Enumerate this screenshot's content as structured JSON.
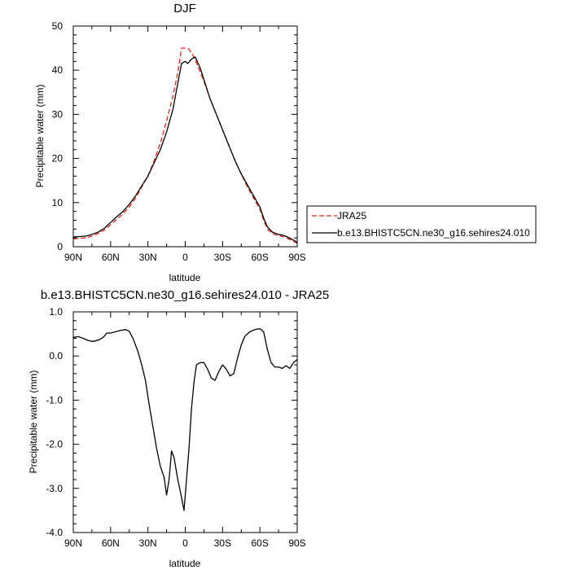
{
  "chart_data": [
    {
      "type": "line",
      "title": "DJF",
      "xlabel": "latitude",
      "ylabel": "Precipitable water (mm)",
      "xlim": [
        90,
        -90
      ],
      "ylim": [
        0,
        50
      ],
      "x_ticks": [
        90,
        60,
        30,
        0,
        -30,
        -60,
        -90
      ],
      "x_tick_labels": [
        "90N",
        "60N",
        "30N",
        "0",
        "30S",
        "60S",
        "90S"
      ],
      "y_ticks": [
        0,
        10,
        20,
        30,
        40,
        50
      ],
      "y_tick_labels": [
        "0",
        "10",
        "20",
        "30",
        "40",
        "50"
      ],
      "legend_position": "right of plot",
      "series": [
        {
          "name": "JRA25",
          "color": "#e8231b",
          "dash": "dashed",
          "points": [
            [
              90,
              1.8
            ],
            [
              85,
              1.9
            ],
            [
              80,
              2.0
            ],
            [
              75,
              2.4
            ],
            [
              70,
              3.0
            ],
            [
              65,
              3.8
            ],
            [
              60,
              5.0
            ],
            [
              55,
              6.2
            ],
            [
              50,
              7.5
            ],
            [
              45,
              9.0
            ],
            [
              40,
              11.0
            ],
            [
              35,
              13.5
            ],
            [
              30,
              16.0
            ],
            [
              25,
              19.5
            ],
            [
              20,
              23.5
            ],
            [
              15,
              28.5
            ],
            [
              10,
              34.0
            ],
            [
              6,
              39.5
            ],
            [
              4,
              43.0
            ],
            [
              3,
              45.0
            ],
            [
              0,
              45.0
            ],
            [
              -3,
              44.8
            ],
            [
              -6,
              43.5
            ],
            [
              -10,
              41.0
            ],
            [
              -15,
              37.5
            ],
            [
              -20,
              33.5
            ],
            [
              -25,
              30.0
            ],
            [
              -30,
              26.5
            ],
            [
              -35,
              23.0
            ],
            [
              -40,
              19.5
            ],
            [
              -45,
              16.5
            ],
            [
              -50,
              13.5
            ],
            [
              -55,
              11.0
            ],
            [
              -60,
              8.5
            ],
            [
              -63,
              6.0
            ],
            [
              -66,
              4.0
            ],
            [
              -70,
              3.0
            ],
            [
              -75,
              2.5
            ],
            [
              -80,
              2.2
            ],
            [
              -85,
              1.5
            ],
            [
              -90,
              0.8
            ]
          ]
        },
        {
          "name": "b.e13.BHISTC5CN.ne30_g16.sehires24.010",
          "color": "#000000",
          "dash": "solid",
          "points": [
            [
              90,
              2.2
            ],
            [
              85,
              2.3
            ],
            [
              80,
              2.4
            ],
            [
              75,
              2.8
            ],
            [
              70,
              3.3
            ],
            [
              65,
              4.2
            ],
            [
              60,
              5.5
            ],
            [
              55,
              6.8
            ],
            [
              50,
              8.0
            ],
            [
              45,
              9.6
            ],
            [
              40,
              11.5
            ],
            [
              35,
              13.8
            ],
            [
              30,
              16.0
            ],
            [
              25,
              19.0
            ],
            [
              20,
              22.0
            ],
            [
              15,
              26.0
            ],
            [
              10,
              31.0
            ],
            [
              6,
              37.0
            ],
            [
              3,
              41.5
            ],
            [
              0,
              42.0
            ],
            [
              -2,
              41.5
            ],
            [
              -5,
              42.5
            ],
            [
              -8,
              43.0
            ],
            [
              -12,
              40.5
            ],
            [
              -16,
              37.0
            ],
            [
              -20,
              33.5
            ],
            [
              -25,
              30.0
            ],
            [
              -30,
              26.5
            ],
            [
              -35,
              23.0
            ],
            [
              -40,
              19.5
            ],
            [
              -45,
              16.5
            ],
            [
              -50,
              14.0
            ],
            [
              -55,
              11.5
            ],
            [
              -60,
              9.0
            ],
            [
              -63,
              6.5
            ],
            [
              -66,
              4.5
            ],
            [
              -70,
              3.3
            ],
            [
              -75,
              2.8
            ],
            [
              -80,
              2.5
            ],
            [
              -85,
              1.8
            ],
            [
              -90,
              1.0
            ]
          ]
        }
      ]
    },
    {
      "type": "line",
      "title": "b.e13.BHISTC5CN.ne30_g16.sehires24.010 - JRA25",
      "xlabel": "latitude",
      "ylabel": "Precipitable water (mm)",
      "xlim": [
        90,
        -90
      ],
      "ylim": [
        -4,
        1
      ],
      "x_ticks": [
        90,
        60,
        30,
        0,
        -30,
        -60,
        -90
      ],
      "x_tick_labels": [
        "90N",
        "60N",
        "30N",
        "0",
        "30S",
        "60S",
        "90S"
      ],
      "y_ticks": [
        1,
        0,
        -1,
        -2,
        -3,
        -4
      ],
      "y_tick_labels": [
        "1.0",
        "0.0",
        "-1.0",
        "-2.0",
        "-3.0",
        "-4.0"
      ],
      "series": [
        {
          "color": "#000000",
          "dash": "solid",
          "points": [
            [
              90,
              0.42
            ],
            [
              86,
              0.44
            ],
            [
              82,
              0.4
            ],
            [
              78,
              0.35
            ],
            [
              74,
              0.33
            ],
            [
              70,
              0.36
            ],
            [
              66,
              0.42
            ],
            [
              63,
              0.52
            ],
            [
              60,
              0.52
            ],
            [
              56,
              0.55
            ],
            [
              52,
              0.58
            ],
            [
              48,
              0.6
            ],
            [
              45,
              0.56
            ],
            [
              42,
              0.4
            ],
            [
              38,
              0.1
            ],
            [
              35,
              -0.2
            ],
            [
              32,
              -0.55
            ],
            [
              29,
              -1.1
            ],
            [
              26,
              -1.6
            ],
            [
              23,
              -2.1
            ],
            [
              20,
              -2.5
            ],
            [
              17,
              -2.75
            ],
            [
              15,
              -3.15
            ],
            [
              13,
              -2.8
            ],
            [
              11,
              -2.15
            ],
            [
              9,
              -2.3
            ],
            [
              6,
              -2.8
            ],
            [
              3,
              -3.2
            ],
            [
              1,
              -3.5
            ],
            [
              -1,
              -2.8
            ],
            [
              -3,
              -2.1
            ],
            [
              -5,
              -1.2
            ],
            [
              -7,
              -0.6
            ],
            [
              -9,
              -0.2
            ],
            [
              -12,
              -0.15
            ],
            [
              -15,
              -0.15
            ],
            [
              -18,
              -0.3
            ],
            [
              -21,
              -0.5
            ],
            [
              -24,
              -0.55
            ],
            [
              -27,
              -0.35
            ],
            [
              -30,
              -0.2
            ],
            [
              -33,
              -0.3
            ],
            [
              -36,
              -0.45
            ],
            [
              -39,
              -0.4
            ],
            [
              -42,
              -0.05
            ],
            [
              -45,
              0.25
            ],
            [
              -48,
              0.45
            ],
            [
              -52,
              0.55
            ],
            [
              -56,
              0.6
            ],
            [
              -60,
              0.62
            ],
            [
              -63,
              0.55
            ],
            [
              -66,
              0.15
            ],
            [
              -69,
              -0.15
            ],
            [
              -72,
              -0.25
            ],
            [
              -75,
              -0.25
            ],
            [
              -78,
              -0.28
            ],
            [
              -81,
              -0.22
            ],
            [
              -84,
              -0.28
            ],
            [
              -87,
              -0.15
            ],
            [
              -90,
              -0.08
            ]
          ]
        }
      ]
    }
  ]
}
